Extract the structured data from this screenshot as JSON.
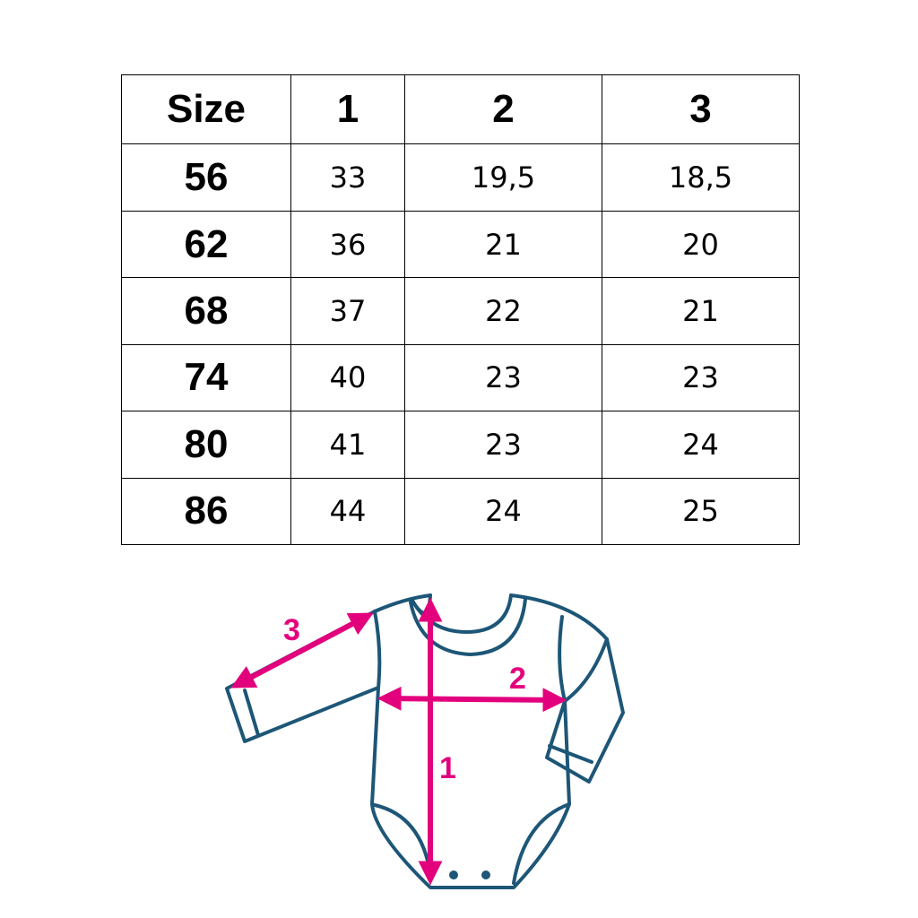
{
  "table": {
    "headers": [
      "Size",
      "1",
      "2",
      "3"
    ],
    "rows": [
      [
        "56",
        "33",
        "19,5",
        "18,5"
      ],
      [
        "62",
        "36",
        "21",
        "20"
      ],
      [
        "68",
        "37",
        "22",
        "21"
      ],
      [
        "74",
        "40",
        "23",
        "23"
      ],
      [
        "80",
        "41",
        "23",
        "24"
      ],
      [
        "86",
        "44",
        "24",
        "25"
      ]
    ]
  },
  "diagram": {
    "labels": {
      "length": "1",
      "width": "2",
      "sleeve": "3"
    },
    "colors": {
      "outline": "#1d5677",
      "arrows": "#e2007d"
    }
  }
}
